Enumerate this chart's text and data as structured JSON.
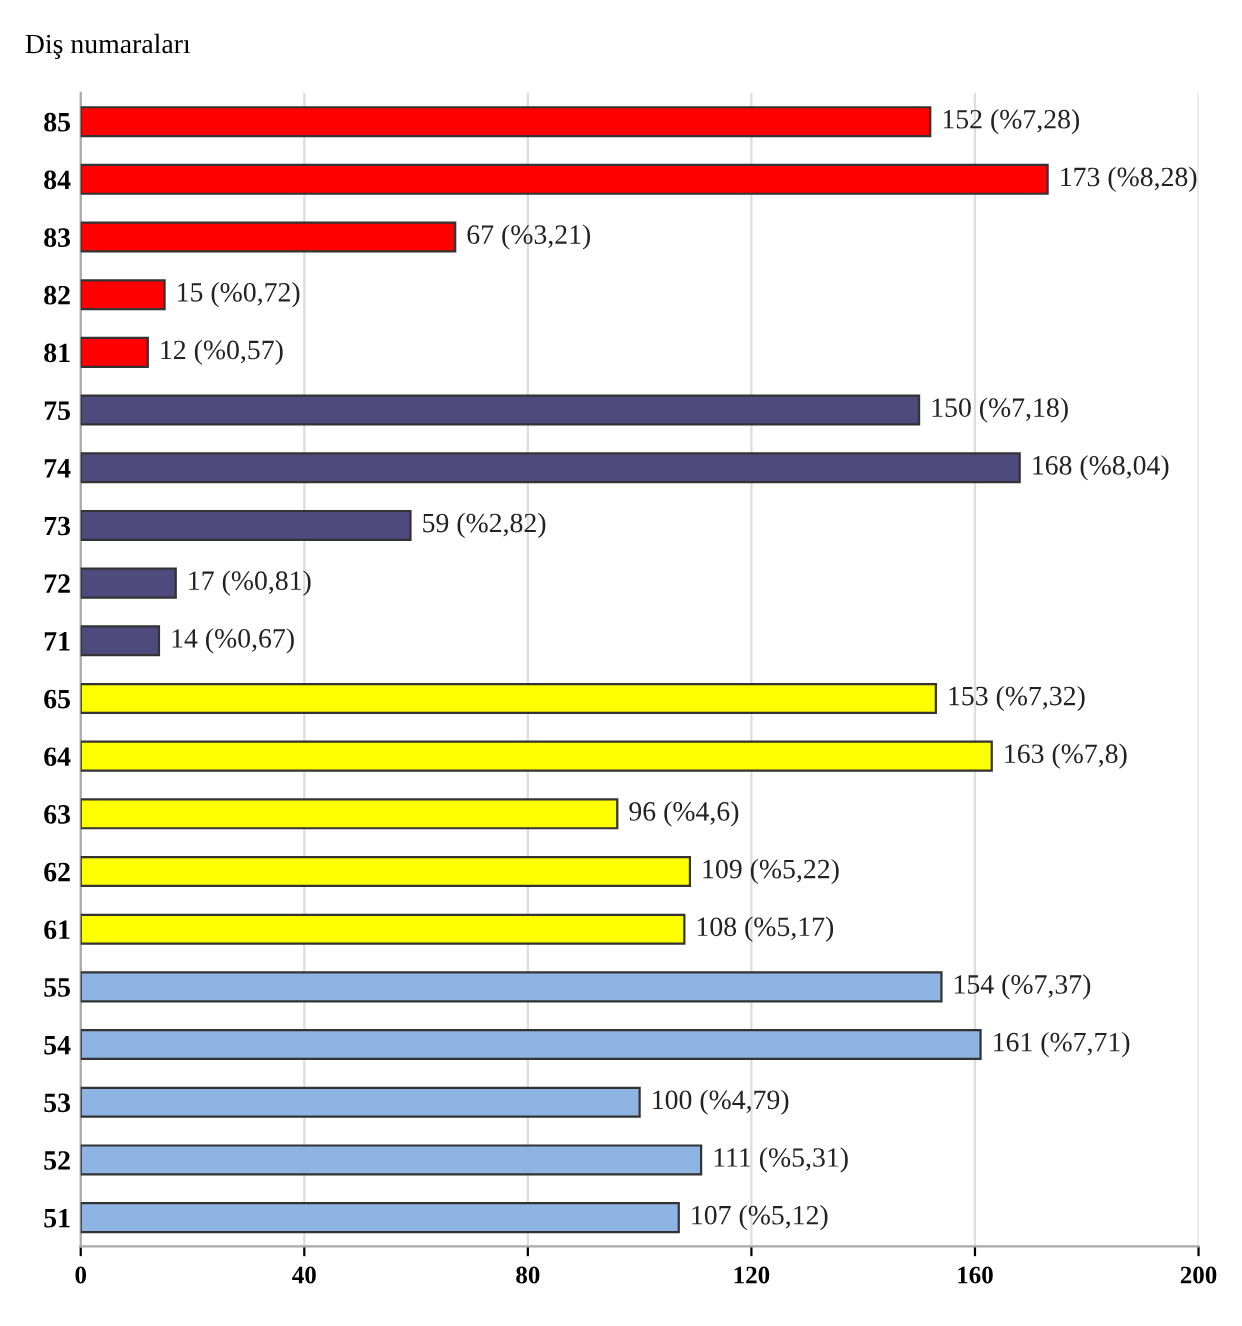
{
  "chart_data": {
    "type": "bar",
    "orientation": "horizontal",
    "title": "Diş numaraları",
    "categories": [
      "85",
      "84",
      "83",
      "82",
      "81",
      "75",
      "74",
      "73",
      "72",
      "71",
      "65",
      "64",
      "63",
      "62",
      "61",
      "55",
      "54",
      "53",
      "52",
      "51"
    ],
    "values": [
      152,
      173,
      67,
      15,
      12,
      150,
      168,
      59,
      17,
      14,
      153,
      163,
      96,
      109,
      108,
      154,
      161,
      100,
      111,
      107
    ],
    "value_labels": [
      "152 (%7,28)",
      "173 (%8,28)",
      "67 (%3,21)",
      "15 (%0,72)",
      "12 (%0,57)",
      "150 (%7,18)",
      "168 (%8,04)",
      "59 (%2,82)",
      "17 (%0,81)",
      "14 (%0,67)",
      "153 (%7,32)",
      "163 (%7,8)",
      "96 (%4,6)",
      "109 (%5,22)",
      "108 (%5,17)",
      "154 (%7,37)",
      "161 (%7,71)",
      "100 (%4,79)",
      "111 (%5,31)",
      "107 (%5,12)"
    ],
    "colors": [
      "#ff0000",
      "#ff0000",
      "#ff0000",
      "#ff0000",
      "#ff0000",
      "#4f4a7e",
      "#4f4a7e",
      "#4f4a7e",
      "#4f4a7e",
      "#4f4a7e",
      "#ffff00",
      "#ffff00",
      "#ffff00",
      "#ffff00",
      "#ffff00",
      "#8db4e2",
      "#8db4e2",
      "#8db4e2",
      "#8db4e2",
      "#8db4e2"
    ],
    "xlim": [
      0,
      200
    ],
    "xticks": [
      0,
      40,
      80,
      120,
      160,
      200
    ],
    "grid": "x"
  }
}
